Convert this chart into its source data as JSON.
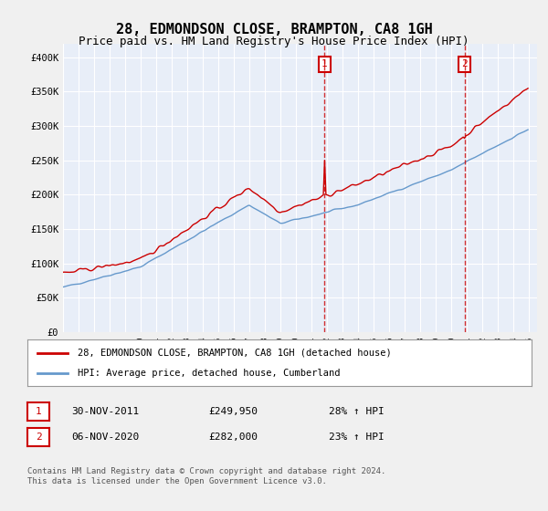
{
  "title": "28, EDMONDSON CLOSE, BRAMPTON, CA8 1GH",
  "subtitle": "Price paid vs. HM Land Registry's House Price Index (HPI)",
  "legend_line1": "28, EDMONDSON CLOSE, BRAMPTON, CA8 1GH (detached house)",
  "legend_line2": "HPI: Average price, detached house, Cumberland",
  "annotation1_label": "1",
  "annotation1_date": "30-NOV-2011",
  "annotation1_price": "£249,950",
  "annotation1_hpi": "28% ↑ HPI",
  "annotation2_label": "2",
  "annotation2_date": "06-NOV-2020",
  "annotation2_price": "£282,000",
  "annotation2_hpi": "23% ↑ HPI",
  "footnote": "Contains HM Land Registry data © Crown copyright and database right 2024.\nThis data is licensed under the Open Government Licence v3.0.",
  "red_color": "#cc0000",
  "blue_color": "#6699cc",
  "background_color": "#e8eef8",
  "plot_bg_color": "#ffffff",
  "annotation_box_color": "#cc0000",
  "ylim": [
    0,
    420000
  ],
  "yticks": [
    0,
    50000,
    100000,
    150000,
    200000,
    250000,
    300000,
    350000,
    400000
  ],
  "ytick_labels": [
    "£0",
    "£50K",
    "£100K",
    "£150K",
    "£200K",
    "£250K",
    "£300K",
    "£350K",
    "£400K"
  ],
  "xstart_year": 1995,
  "xend_year": 2025
}
